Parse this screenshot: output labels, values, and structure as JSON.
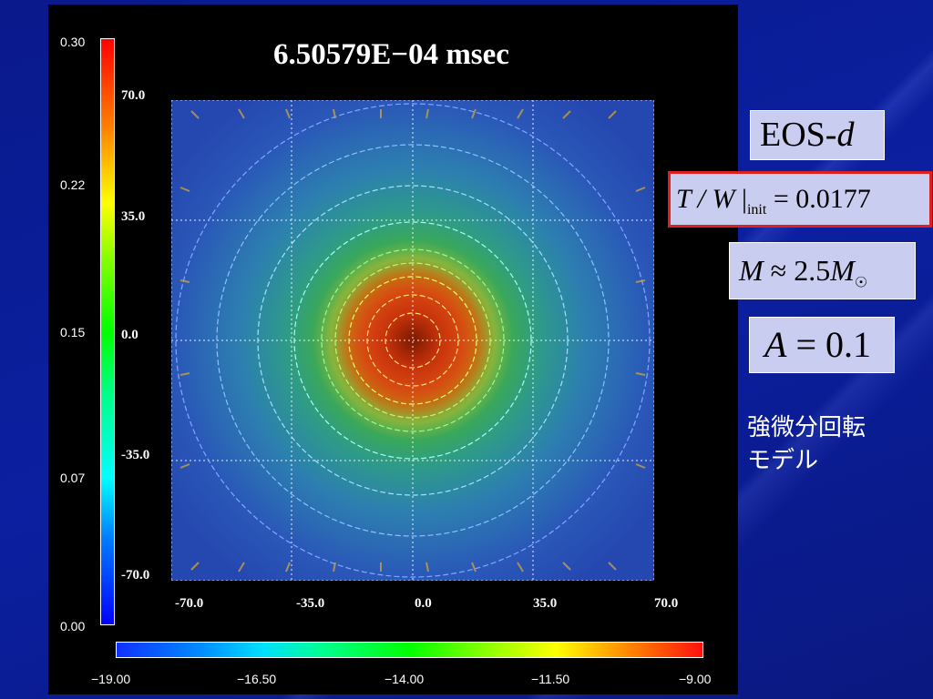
{
  "slide": {
    "title": "6.50579E−04 msec",
    "colorbar_vertical": {
      "ticks": [
        "0.30",
        "0.22",
        "0.15",
        "0.07",
        "0.00"
      ]
    },
    "colorbar_horizontal": {
      "ticks": [
        "−19.00",
        "−16.50",
        "−14.00",
        "−11.50",
        "−9.00"
      ]
    },
    "plot_axes": {
      "y_ticks": [
        "70.0",
        "35.0",
        "0.0",
        "-35.0",
        "-70.0"
      ],
      "x_ticks": [
        "-70.0",
        "-35.0",
        "0.0",
        "35.0",
        "70.0"
      ]
    },
    "labels": {
      "eos_main": "EOS-",
      "eos_italic": "d",
      "tw_lhs": "T / W",
      "tw_sub": "init",
      "tw_eq": " = 0.0177",
      "mass_lhs": "M",
      "mass_eq": " ≈ 2.5",
      "mass_m": "M",
      "amp_lhs": "A",
      "amp_eq": " = 0.1",
      "model_line1": "強微分回転",
      "model_line2": "モデル"
    }
  }
}
